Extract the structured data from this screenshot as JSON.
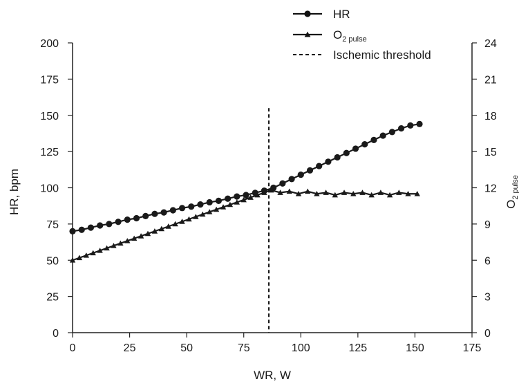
{
  "chart_data": {
    "type": "line",
    "xlabel": "WR, W",
    "ylabel": "HR, bpm",
    "y2label": {
      "main": "O",
      "sub": "2 pulse"
    },
    "xlim": [
      0,
      175
    ],
    "ylim": [
      0,
      200
    ],
    "y2lim": [
      0,
      24
    ],
    "xticks": [
      "0",
      "25",
      "50",
      "75",
      "100",
      "125",
      "150",
      "175"
    ],
    "yticks": [
      "0",
      "25",
      "50",
      "75",
      "100",
      "125",
      "150",
      "175",
      "200"
    ],
    "y2ticks": [
      "0",
      "3",
      "6",
      "9",
      "12",
      "15",
      "18",
      "21",
      "24"
    ],
    "grid": false,
    "legend_position": "top-right",
    "legend": [
      {
        "label": "HR",
        "sub": "",
        "marker": "circle",
        "style": "solid"
      },
      {
        "label": "O",
        "sub": "2 pulse",
        "marker": "triangle",
        "style": "solid"
      },
      {
        "label": "Ischemic threshold",
        "sub": "",
        "marker": "none",
        "style": "dashed"
      }
    ],
    "threshold": {
      "x": 86,
      "y_top": 155
    },
    "series": [
      {
        "name": "HR",
        "axis": "left",
        "marker": "circle",
        "x": [
          0,
          4,
          8,
          12,
          16,
          20,
          24,
          28,
          32,
          36,
          40,
          44,
          48,
          52,
          56,
          60,
          64,
          68,
          72,
          76,
          80,
          84,
          88,
          92,
          96,
          100,
          104,
          108,
          112,
          116,
          120,
          124,
          128,
          132,
          136,
          140,
          144,
          148,
          152
        ],
        "y": [
          70,
          71,
          72.5,
          74,
          75,
          76.5,
          78,
          79,
          80.5,
          82,
          83,
          84.5,
          86,
          87,
          88.5,
          90,
          91,
          92.5,
          94,
          95,
          96.5,
          98,
          100,
          103,
          106,
          109,
          112,
          115,
          118,
          121,
          124,
          127,
          130,
          133,
          136,
          138.5,
          141,
          143,
          144
        ]
      },
      {
        "name": "O2 pulse",
        "axis": "right",
        "marker": "triangle",
        "x": [
          0,
          3,
          6,
          9,
          12,
          15,
          18,
          21,
          24,
          27,
          30,
          33,
          36,
          39,
          42,
          45,
          48,
          51,
          54,
          57,
          60,
          63,
          66,
          69,
          72,
          75,
          78,
          81,
          84,
          87,
          91,
          95,
          99,
          103,
          107,
          111,
          115,
          119,
          123,
          127,
          131,
          135,
          139,
          143,
          147,
          151
        ],
        "y": [
          6.0,
          6.2,
          6.4,
          6.6,
          6.8,
          7.0,
          7.2,
          7.4,
          7.6,
          7.8,
          8.0,
          8.2,
          8.4,
          8.6,
          8.8,
          9.0,
          9.2,
          9.4,
          9.6,
          9.8,
          10.0,
          10.2,
          10.4,
          10.6,
          10.8,
          11.0,
          11.2,
          11.4,
          11.6,
          11.8,
          11.6,
          11.7,
          11.5,
          11.7,
          11.5,
          11.6,
          11.4,
          11.6,
          11.5,
          11.6,
          11.4,
          11.6,
          11.4,
          11.6,
          11.5,
          11.5
        ]
      }
    ]
  }
}
